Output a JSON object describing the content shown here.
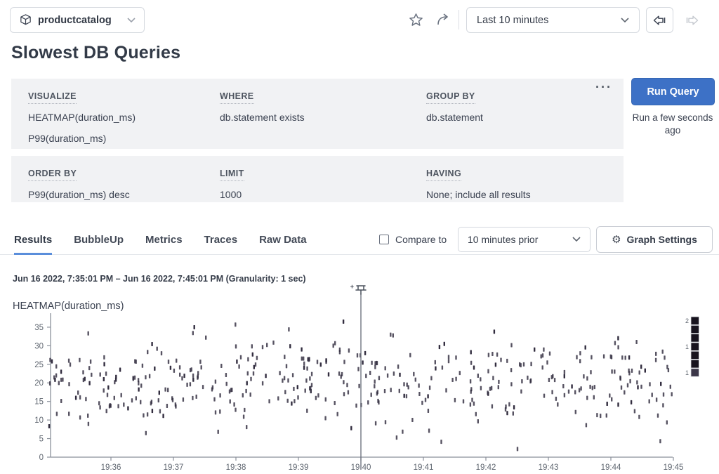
{
  "topbar": {
    "dataset_label": "productcatalog",
    "time_range_value": "Last 10 minutes"
  },
  "page_title": "Slowest DB Queries",
  "query_builder": {
    "menu_label": "···",
    "sections_row1": [
      {
        "label": "VISUALIZE",
        "values": [
          "HEATMAP(duration_ms)",
          "P99(duration_ms)"
        ]
      },
      {
        "label": "WHERE",
        "values": [
          "db.statement exists"
        ]
      },
      {
        "label": "GROUP BY",
        "values": [
          "db.statement"
        ]
      }
    ],
    "sections_row2": [
      {
        "label": "ORDER BY",
        "values": [
          "P99(duration_ms) desc"
        ]
      },
      {
        "label": "LIMIT",
        "values": [
          "1000"
        ]
      },
      {
        "label": "HAVING",
        "values": [
          "None; include all results"
        ]
      }
    ],
    "run_button_label": "Run Query",
    "run_status": "Run a few seconds ago"
  },
  "tabs": [
    {
      "label": "Results",
      "active": true
    },
    {
      "label": "BubbleUp",
      "active": false
    },
    {
      "label": "Metrics",
      "active": false
    },
    {
      "label": "Traces",
      "active": false
    },
    {
      "label": "Raw Data",
      "active": false
    }
  ],
  "controls": {
    "compare_label": "Compare to",
    "compare_checked": false,
    "compare_dropdown_value": "10 minutes prior",
    "graph_settings_label": "Graph Settings"
  },
  "time_summary": "Jun 16 2022, 7:35:01 PM – Jun 16 2022, 7:45:01 PM (Granularity: 1 sec)",
  "chart_data": {
    "type": "heatmap",
    "title": "HEATMAP(duration_ms)",
    "x_start": "19:35",
    "x_end": "19:45",
    "x_ticks": [
      "19:36",
      "19:37",
      "19:38",
      "19:39",
      "19:40",
      "19:41",
      "19:42",
      "19:43",
      "19:44",
      "19:45"
    ],
    "y_ticks": [
      0,
      5,
      10,
      15,
      20,
      25,
      30,
      35
    ],
    "ylim": [
      0,
      37
    ],
    "granularity_seconds": 1,
    "marker_time": "19:40",
    "point_color": "#322d3f",
    "axis_color": "#8b919b",
    "tick_label_color": "#5f6670",
    "legend": {
      "max_count": 2,
      "entries": [
        {
          "label": "2"
        },
        {
          "label": ""
        },
        {
          "label": ""
        },
        {
          "label": "1"
        },
        {
          "label": ""
        },
        {
          "label": ""
        },
        {
          "label": "1"
        }
      ],
      "cell_color": "#17131e",
      "last_cell_color": "#3c3749"
    },
    "distribution_estimate": {
      "note": "dense random scatter of ~440 events, duration_ms mostly 10-30, densest 15-25, sparse outliers down to 2 and up to 36",
      "seed": 11,
      "count": 440,
      "y_mean": 20,
      "y_sd": 6,
      "y_clip": [
        2,
        36.5
      ],
      "x_minutes_range": [
        0,
        10
      ]
    }
  },
  "colors": {
    "accent_blue": "#3d71c6",
    "tab_underline": "#5a8edb",
    "panel_bg": "#f1f2f4"
  }
}
